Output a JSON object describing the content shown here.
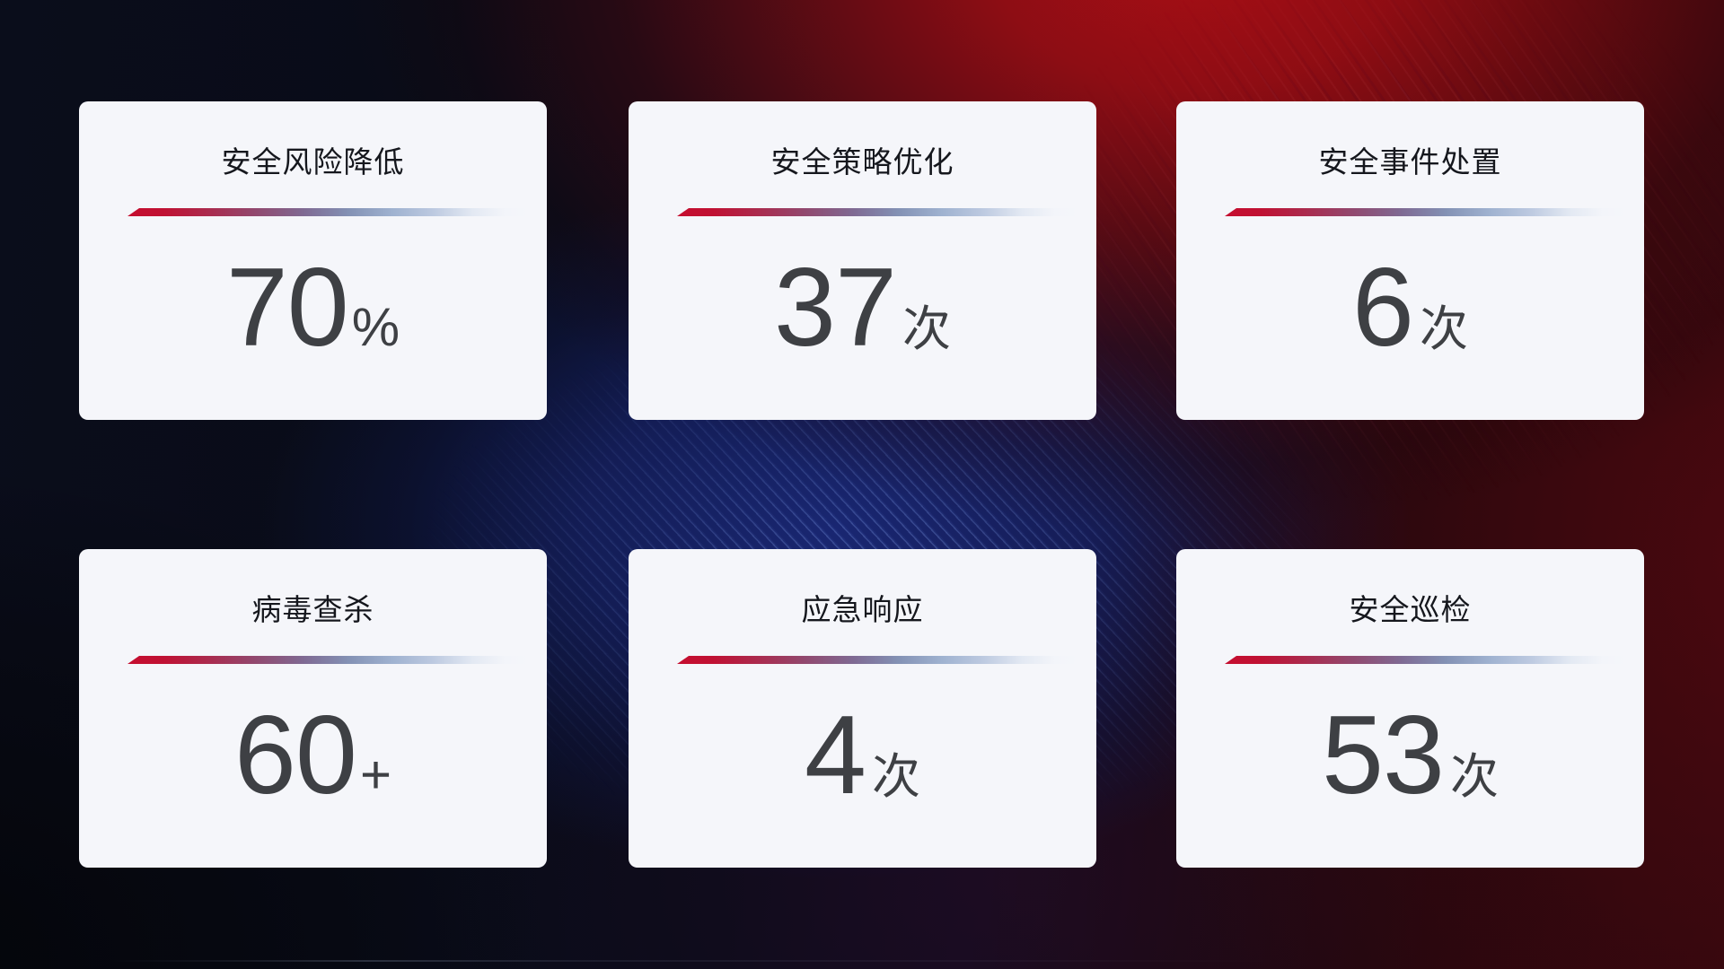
{
  "cards": [
    {
      "title": "安全风险降低",
      "value": "70",
      "suffix": "%"
    },
    {
      "title": "安全策略优化",
      "value": "37",
      "suffix": "次"
    },
    {
      "title": "安全事件处置",
      "value": "6",
      "suffix": "次"
    },
    {
      "title": "病毒查杀",
      "value": "60",
      "suffix": "+"
    },
    {
      "title": "应急响应",
      "value": "4",
      "suffix": "次"
    },
    {
      "title": "安全巡检",
      "value": "53",
      "suffix": "次"
    }
  ],
  "colors": {
    "card_background": "#f5f6fa",
    "title_text": "#15171d",
    "value_text": "#3e4044",
    "accent_line_red": "#c50e2f",
    "accent_line_blue": "#9fb2d0",
    "background_red_glow": "#a80f15",
    "background_blue_band": "#1a2876",
    "background_base": "#0a0d1b"
  }
}
